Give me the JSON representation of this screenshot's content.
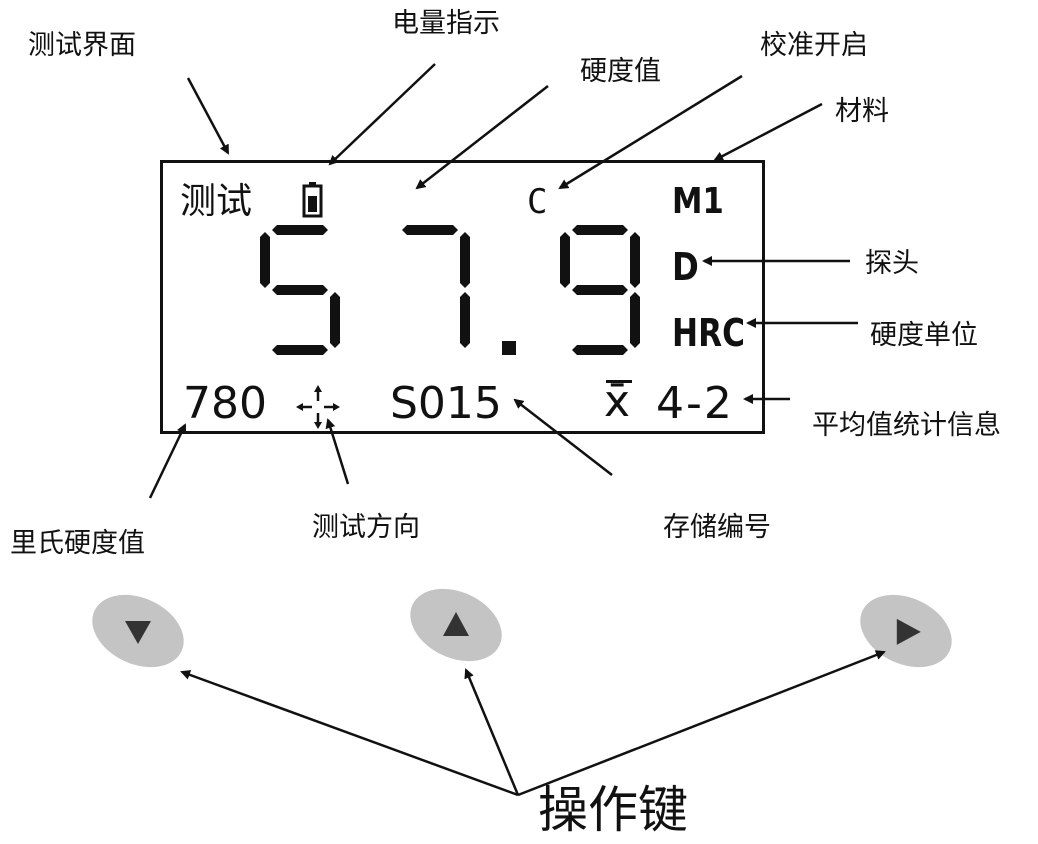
{
  "annotations": {
    "test_interface": "测试界面",
    "battery_indicator": "电量指示",
    "hardness_value": "硬度值",
    "calibration_on": "校准开启",
    "material": "材料",
    "probe": "探头",
    "hardness_unit": "硬度单位",
    "average_stats": "平均值统计信息",
    "leeb_hardness": "里氏硬度值",
    "test_direction": "测试方向",
    "storage_number": "存储编号",
    "operation_keys": "操作键"
  },
  "display": {
    "mode_label": "测试",
    "digits": [
      "5",
      "7",
      "9"
    ],
    "decimal_point": ".",
    "hardness_reading": "57.9",
    "calibration_flag": "C",
    "material_code": "M1",
    "probe_type": "D",
    "unit": "HRC",
    "leeb_value": "780",
    "storage_id": "S015",
    "avg_symbol": "x̄",
    "avg_count": "4-2"
  },
  "buttons": [
    {
      "name": "down-key",
      "icon": "triangle-down"
    },
    {
      "name": "up-key",
      "icon": "triangle-up"
    },
    {
      "name": "right-key",
      "icon": "triangle-right"
    }
  ],
  "colors": {
    "ink": "#111111",
    "button_fill": "#c4c4c4",
    "button_glyph": "#333333"
  }
}
